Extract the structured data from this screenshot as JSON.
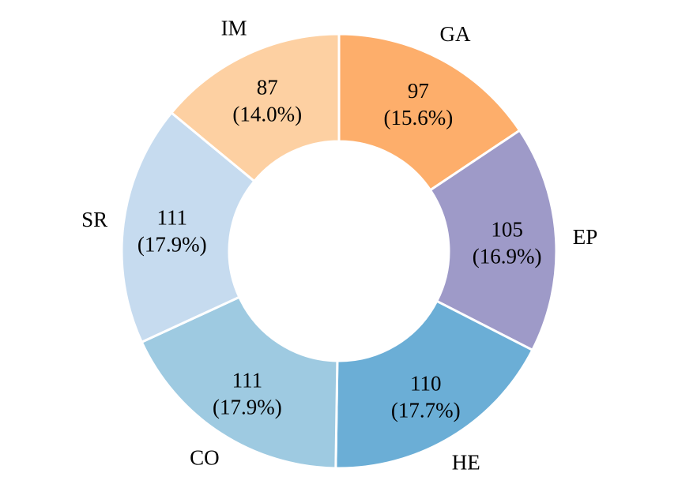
{
  "chart_data": {
    "type": "pie",
    "donut": true,
    "start_angle_deg": 90,
    "direction": "clockwise",
    "slices": [
      {
        "label": "GA",
        "value": 97,
        "percent": "15.6%",
        "color": "#fdae6b"
      },
      {
        "label": "EP",
        "value": 105,
        "percent": "16.9%",
        "color": "#9e9ac8"
      },
      {
        "label": "HE",
        "value": 110,
        "percent": "17.7%",
        "color": "#6baed6"
      },
      {
        "label": "CO",
        "value": 111,
        "percent": "17.9%",
        "color": "#9ecae1"
      },
      {
        "label": "SR",
        "value": 111,
        "percent": "17.9%",
        "color": "#c6dbef"
      },
      {
        "label": "IM",
        "value": 87,
        "percent": "14.0%",
        "color": "#fdd0a2"
      }
    ],
    "title": "",
    "legend": "none"
  }
}
